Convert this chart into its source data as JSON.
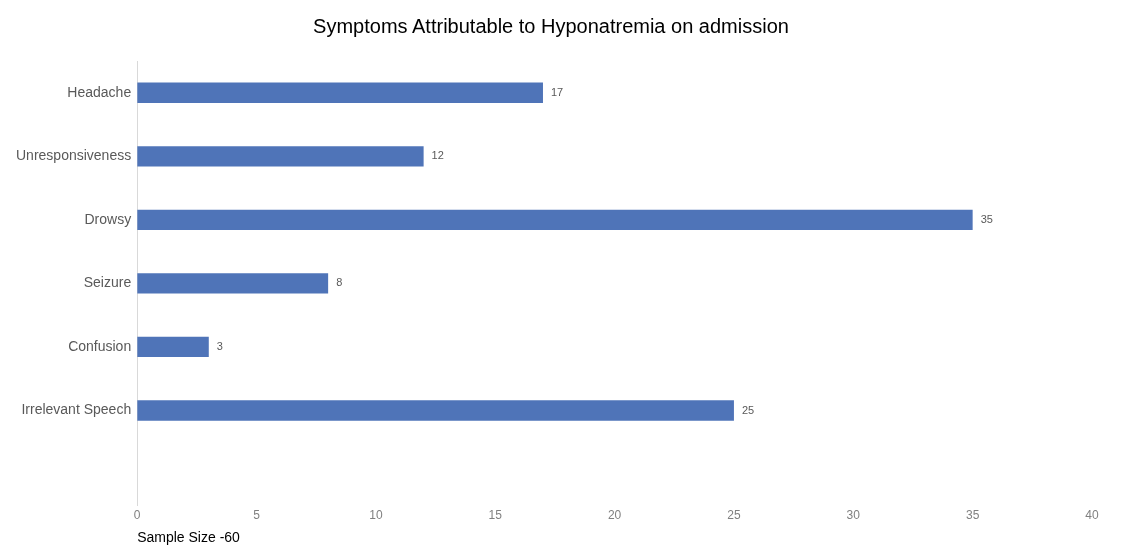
{
  "chart_data": {
    "type": "bar",
    "orientation": "horizontal",
    "title": "Symptoms Attributable to Hyponatremia on admission",
    "xlabel": "Sample Size -60",
    "categories": [
      "Headache",
      "Unresponsiveness",
      "Drowsy",
      "Seizure",
      "Confusion",
      "Irrelevant Speech",
      null
    ],
    "values": [
      17,
      12,
      35,
      8,
      3,
      25,
      null
    ],
    "color": "#4f74b8",
    "xlim": [
      0,
      40
    ],
    "xticks": [
      0,
      5,
      10,
      15,
      20,
      25,
      30,
      35,
      40
    ],
    "grid": false,
    "legend": false,
    "data_labels": true
  }
}
